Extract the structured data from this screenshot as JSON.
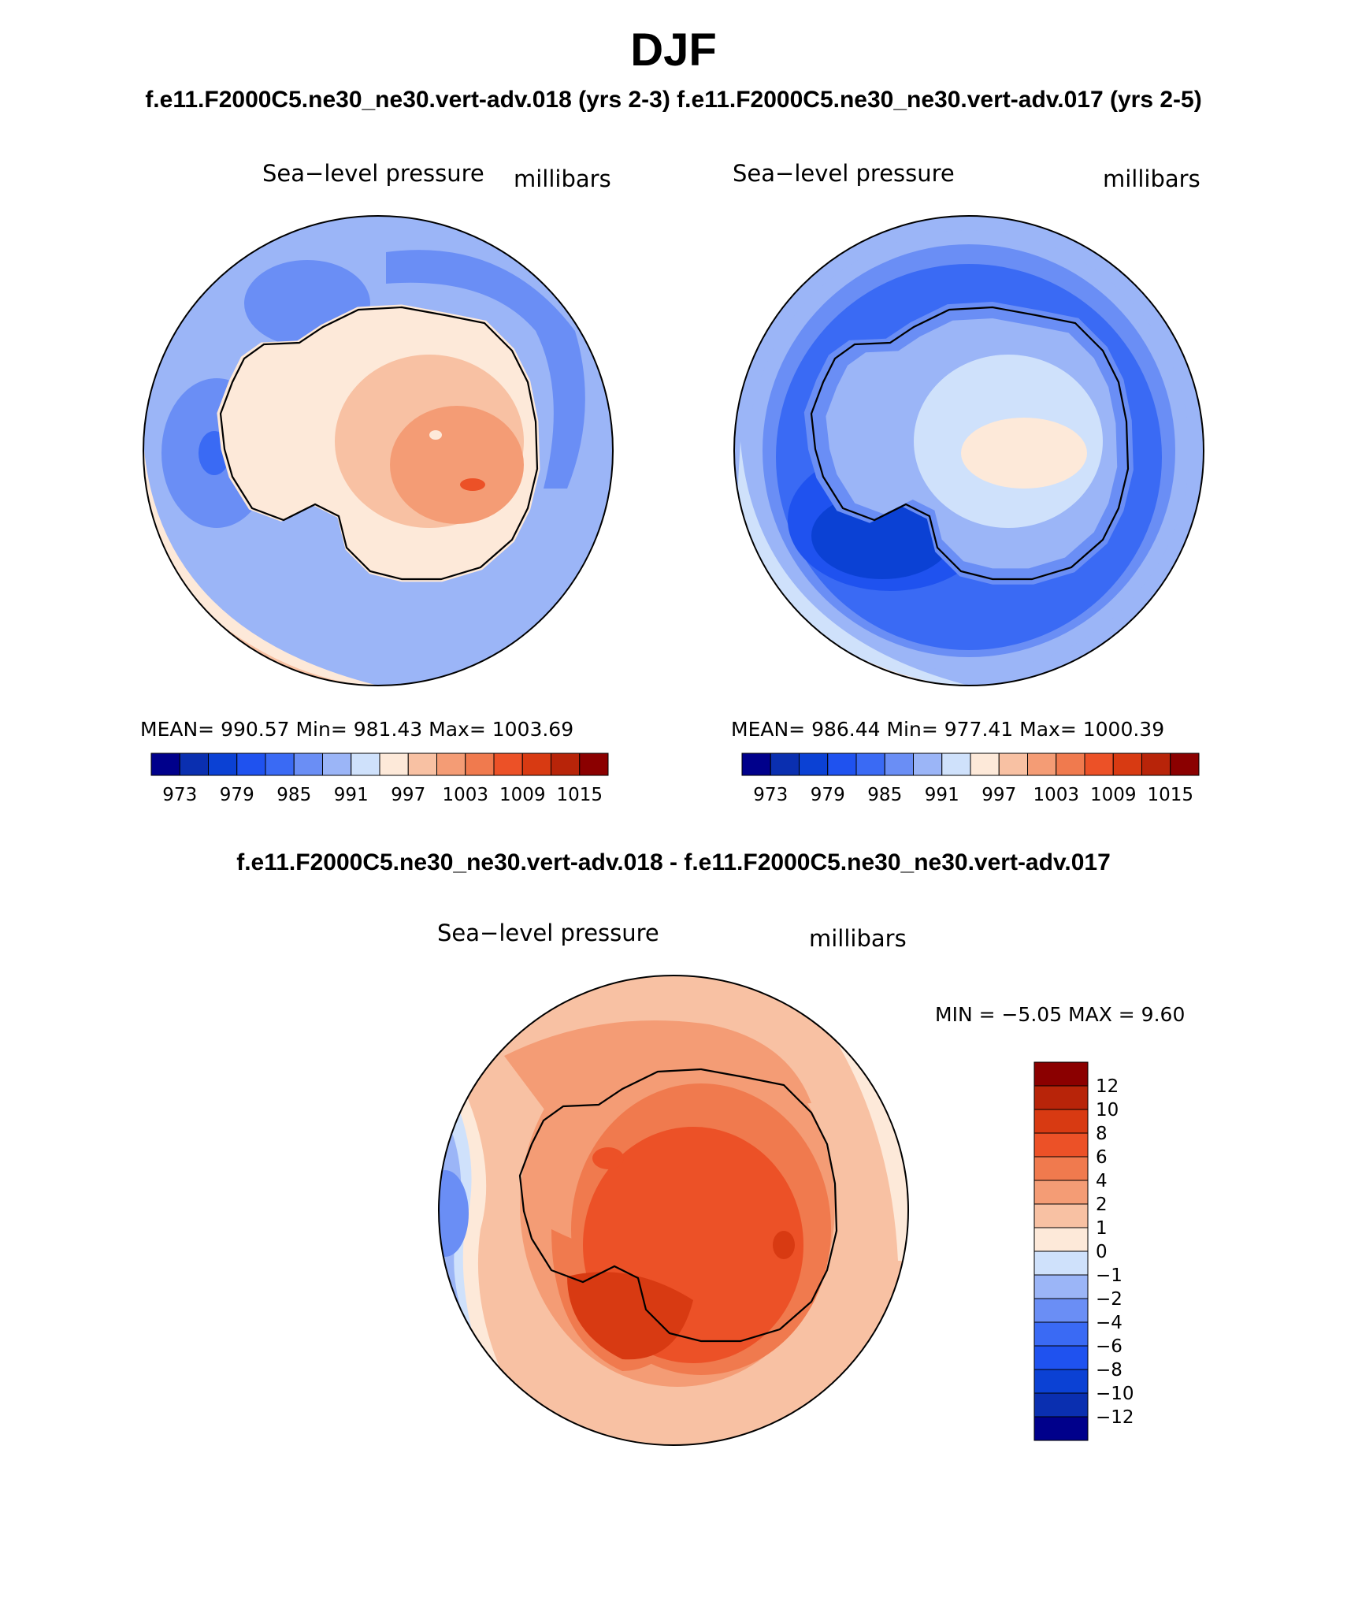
{
  "page": {
    "title": "DJF",
    "subtitle": "f.e11.F2000C5.ne30_ne30.vert-adv.018 (yrs 2-3) f.e11.F2000C5.ne30_ne30.vert-adv.017 (yrs 2-5)",
    "diff_title": "f.e11.F2000C5.ne30_ne30.vert-adv.018 - f.e11.F2000C5.ne30_ne30.vert-adv.017"
  },
  "panels": [
    {
      "id": "run-018",
      "variable": "Sea−level pressure",
      "units": "millibars",
      "stats_text": "MEAN= 990.57   Min= 981.43   Max= 1003.69",
      "mean": 990.57,
      "min": 981.43,
      "max": 1003.69
    },
    {
      "id": "run-017",
      "variable": "Sea−level pressure",
      "units": "millibars",
      "stats_text": "MEAN= 986.44   Min= 977.41   Max= 1000.39",
      "mean": 986.44,
      "min": 977.41,
      "max": 1000.39
    }
  ],
  "colorbar_horizontal": {
    "colors": [
      "#00008b",
      "#0a2fb0",
      "#0b41d4",
      "#1f52ef",
      "#3a6af4",
      "#6a8ef5",
      "#9bb5f7",
      "#cfe1fb",
      "#fde9d9",
      "#f8c1a3",
      "#f49c75",
      "#f07a4e",
      "#ec5127",
      "#d83a12",
      "#b82409",
      "#8b0000"
    ],
    "labels": [
      "973",
      "979",
      "985",
      "991",
      "997",
      "1003",
      "1009",
      "1015"
    ]
  },
  "diff_panel": {
    "variable": "Sea−level pressure",
    "units": "millibars",
    "minmax_text": "MIN =   −5.05  MAX =     9.60",
    "min": -5.05,
    "max": 9.6
  },
  "colorbar_vertical": {
    "colors_top_to_bottom": [
      "#8b0000",
      "#b82409",
      "#d83a12",
      "#ec5127",
      "#f07a4e",
      "#f49c75",
      "#f8c1a3",
      "#fde9d9",
      "#cfe1fb",
      "#9bb5f7",
      "#6a8ef5",
      "#3a6af4",
      "#1f52ef",
      "#0b41d4",
      "#0a2fb0",
      "#00008b"
    ],
    "labels_top_to_bottom": [
      "12",
      "10",
      "8",
      "6",
      "4",
      "2",
      "1",
      "0",
      "−1",
      "−2",
      "−4",
      "−6",
      "−8",
      "−10",
      "−12"
    ]
  }
}
